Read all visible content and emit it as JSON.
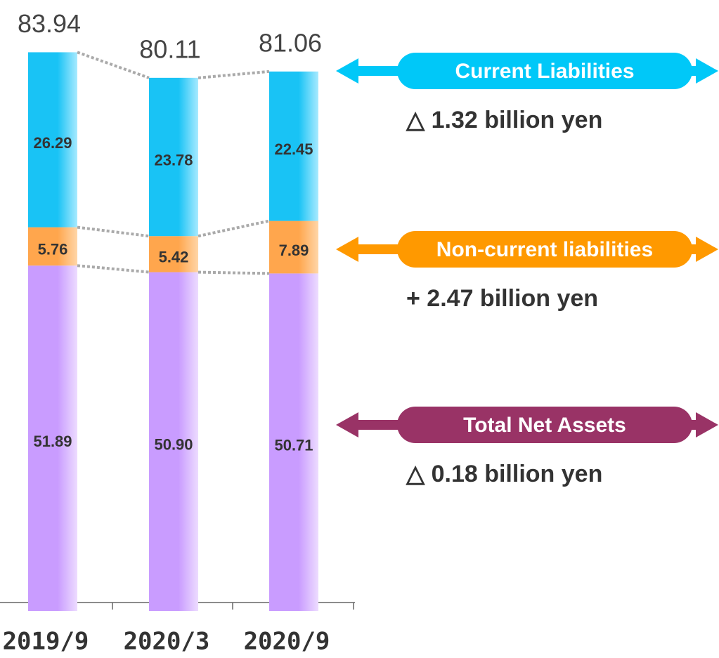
{
  "chart_data": {
    "type": "stacked_bar",
    "categories": [
      "2019/9",
      "2020/3",
      "2020/9"
    ],
    "series": [
      {
        "name": "Total Net Assets",
        "color": "#c99cff",
        "legend_color": "#993366",
        "values": [
          51.89,
          50.9,
          50.71
        ],
        "value_labels": [
          "51.89",
          "50.90",
          "50.71"
        ]
      },
      {
        "name": "Non-current liabilities",
        "color": "#ffa64d",
        "legend_color": "#ff9900",
        "values": [
          5.76,
          5.42,
          7.89
        ]
      },
      {
        "name": "Current Liabilities",
        "color": "#19c3f5",
        "legend_color": "#00c8f8",
        "values": [
          26.29,
          23.78,
          22.45
        ]
      }
    ],
    "totals": [
      83.94,
      80.11,
      81.06
    ],
    "annotations": [
      "△ 0.18 billion yen",
      "+ 2.47 billion yen",
      "△ 1.32 billion yen"
    ],
    "ylim": [
      0,
      90
    ]
  }
}
